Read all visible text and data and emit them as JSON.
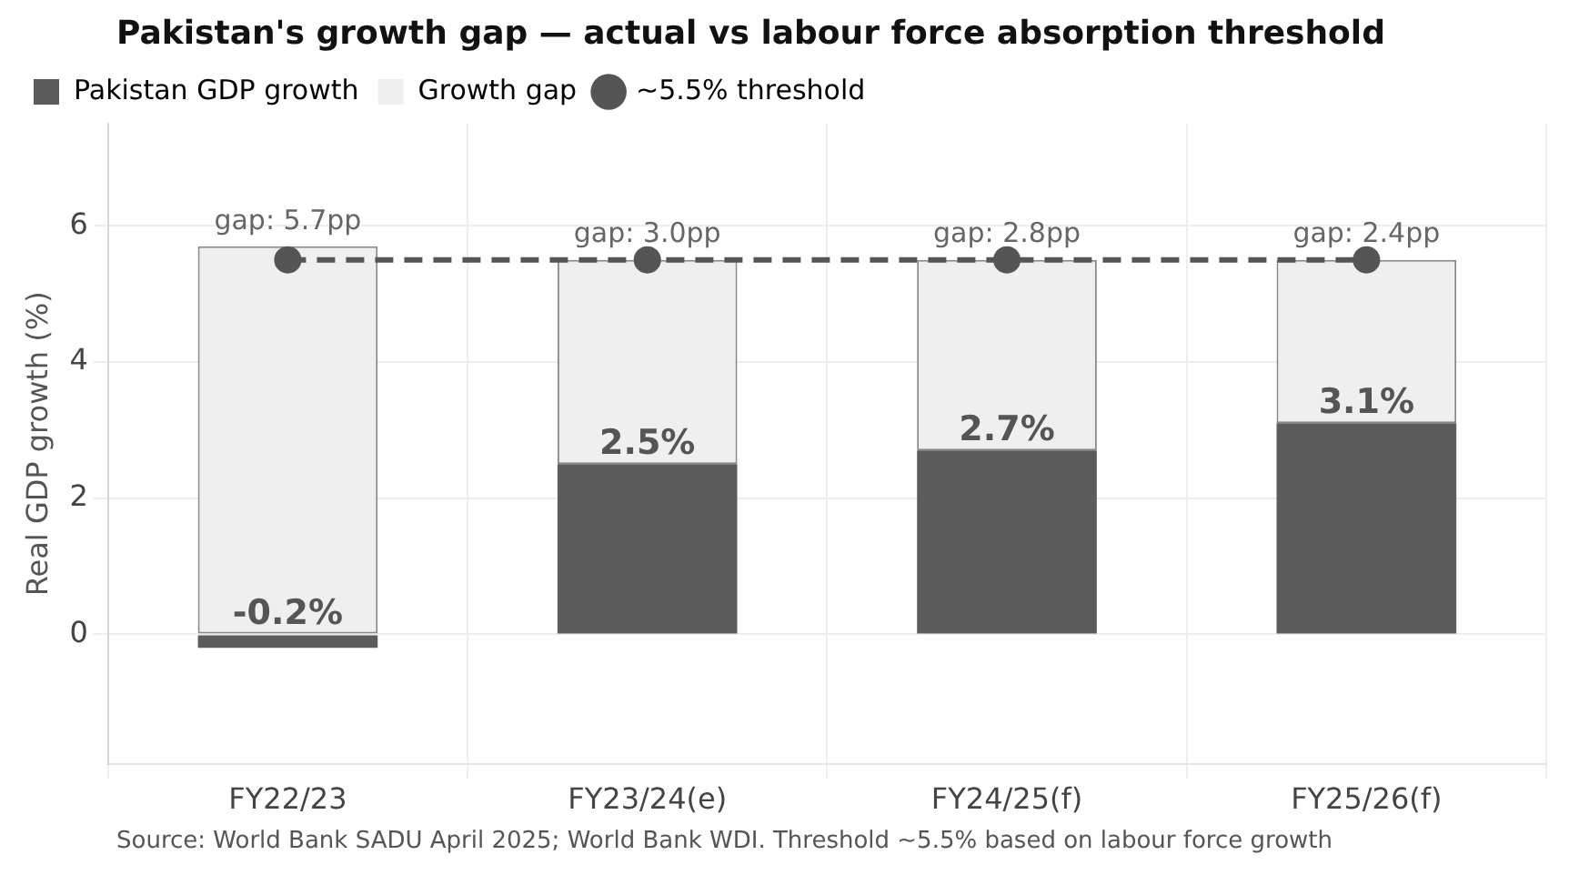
{
  "chart_data": {
    "type": "bar",
    "title": "Pakistan's growth gap — actual vs labour force absorption threshold",
    "ylabel": "Real GDP growth (%)",
    "categories": [
      "FY22/23",
      "FY23/24(e)",
      "FY24/25(f)",
      "FY25/26(f)"
    ],
    "series": [
      {
        "name": "Pakistan GDP growth",
        "color": "#5c5c5c",
        "values": [
          -0.2,
          2.5,
          2.7,
          3.1
        ],
        "value_labels": [
          "-0.2%",
          "2.5%",
          "2.7%",
          "3.1%"
        ]
      },
      {
        "name": "Growth gap",
        "color": "#efefef",
        "values": [
          5.7,
          3.0,
          2.8,
          2.4
        ],
        "value_labels": [
          "gap: 5.7pp",
          "gap: 3.0pp",
          "gap: 2.8pp",
          "gap: 2.4pp"
        ]
      },
      {
        "name": "~5.5% threshold",
        "type": "line",
        "color": "#555555",
        "values": [
          5.5,
          5.5,
          5.5,
          5.5
        ],
        "marker": "circle",
        "line_style": "dashed"
      }
    ],
    "stacked": true,
    "ylim": [
      -1.9,
      7.5
    ],
    "yticks": [
      0,
      2,
      4,
      6
    ],
    "grid": true,
    "legend": "top left",
    "annotations": [
      "Source: World Bank SADU April 2025; World Bank WDI. Threshold ~5.5% based on labour force growth"
    ]
  }
}
